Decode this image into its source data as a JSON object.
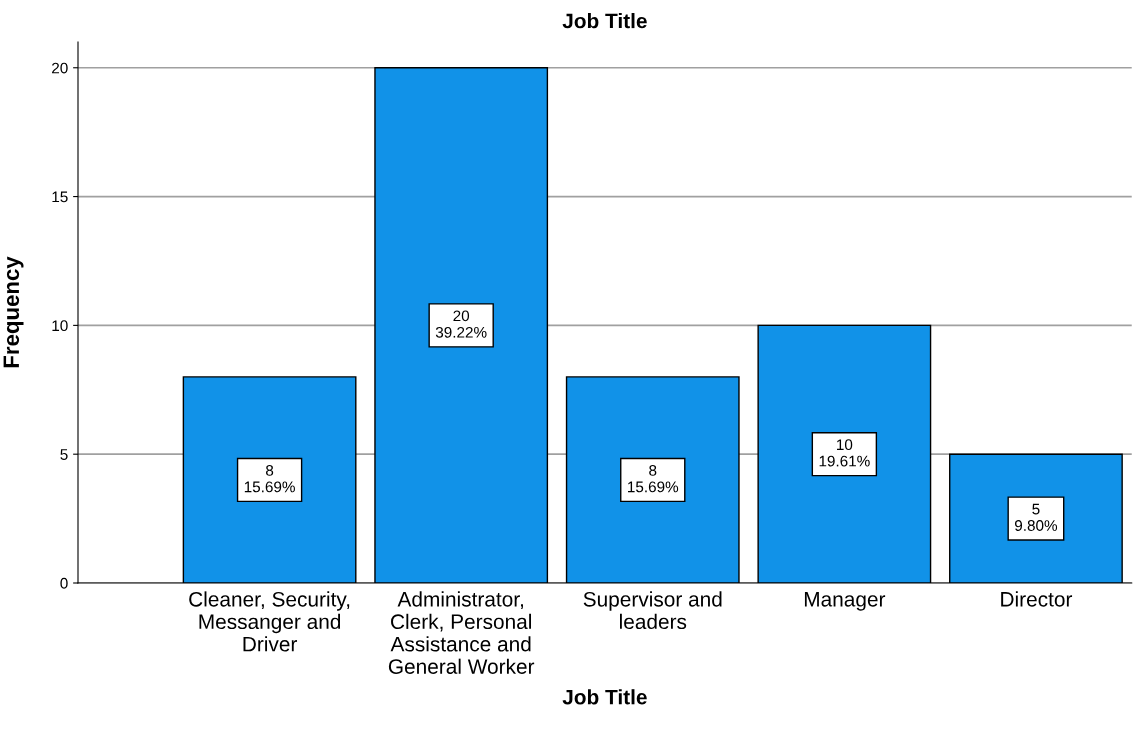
{
  "chart_data": {
    "type": "bar",
    "title": "Job Title",
    "xlabel": "Job Title",
    "ylabel": "Frequency",
    "categories": [
      "Cleaner, Security,\nMessanger and\nDriver",
      "Administrator,\nClerk, Personal\nAssistance and\nGeneral Worker",
      "Supervisor and\nleaders",
      "Manager",
      "Director"
    ],
    "values": [
      8,
      20,
      8,
      10,
      5
    ],
    "value_labels": [
      "8\n15.69%",
      "20\n39.22%",
      "8\n15.69%",
      "10\n19.61%",
      "5\n9.80%"
    ],
    "color": "#1192e8",
    "ylim": [
      0,
      21
    ],
    "yticks": [
      0,
      5,
      10,
      15,
      20
    ],
    "grid": "y",
    "legend": false
  }
}
